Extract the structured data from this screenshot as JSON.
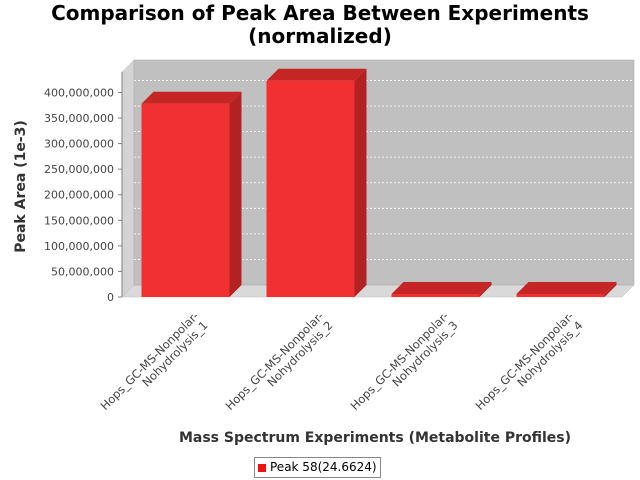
{
  "chart_data": {
    "type": "bar",
    "title_line1": "Comparison of Peak Area Between Experiments",
    "title_line2": "(normalized)",
    "xlabel": "Mass Spectrum Experiments (Metabolite Profiles)",
    "ylabel": "Peak Area (1e-3)",
    "categories": [
      [
        "Hops_GC-MS-Nonpolar-",
        "Nohydrolysis_1"
      ],
      [
        "Hops_GC-MS-Nonpolar-",
        "Nohydrolysis_2"
      ],
      [
        "Hops_GC-MS-Nonpolar-",
        "Nohydrolysis_3"
      ],
      [
        "Hops_GC-MS-Nonpolar-",
        "Nohydrolysis_4"
      ]
    ],
    "series": [
      {
        "name": "Peak 58(24.6624)",
        "color": "#ee1111",
        "values": [
          378000000,
          423000000,
          4000000,
          4000000
        ]
      }
    ],
    "yticks": [
      0,
      50000000,
      100000000,
      150000000,
      200000000,
      250000000,
      300000000,
      350000000,
      400000000
    ],
    "ytick_labels": [
      "0",
      "50,000,000",
      "100,000,000",
      "150,000,000",
      "200,000,000",
      "250,000,000",
      "300,000,000",
      "350,000,000",
      "400,000,000"
    ],
    "ylim": [
      0,
      440000000
    ],
    "grid": true,
    "legend_position": "bottom"
  }
}
